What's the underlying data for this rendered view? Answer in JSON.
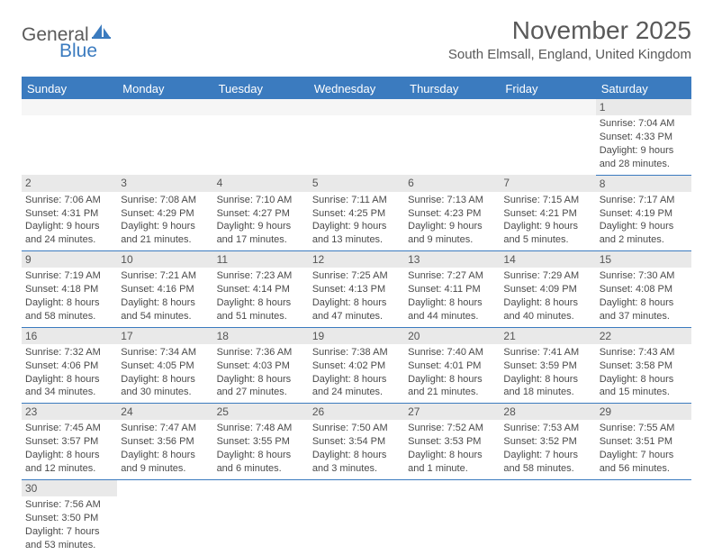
{
  "logo": {
    "text1": "General",
    "text2": "Blue",
    "icon_color": "#3b7bbf"
  },
  "title": "November 2025",
  "location": "South Elmsall, England, United Kingdom",
  "colors": {
    "accent": "#3b7bbf",
    "gray_bg": "#e9e9e9",
    "text": "#4a4a4a"
  },
  "weekdays": [
    "Sunday",
    "Monday",
    "Tuesday",
    "Wednesday",
    "Thursday",
    "Friday",
    "Saturday"
  ],
  "weeks": [
    [
      null,
      null,
      null,
      null,
      null,
      null,
      {
        "n": "1",
        "sr": "Sunrise: 7:04 AM",
        "ss": "Sunset: 4:33 PM",
        "d1": "Daylight: 9 hours",
        "d2": "and 28 minutes."
      }
    ],
    [
      {
        "n": "2",
        "sr": "Sunrise: 7:06 AM",
        "ss": "Sunset: 4:31 PM",
        "d1": "Daylight: 9 hours",
        "d2": "and 24 minutes."
      },
      {
        "n": "3",
        "sr": "Sunrise: 7:08 AM",
        "ss": "Sunset: 4:29 PM",
        "d1": "Daylight: 9 hours",
        "d2": "and 21 minutes."
      },
      {
        "n": "4",
        "sr": "Sunrise: 7:10 AM",
        "ss": "Sunset: 4:27 PM",
        "d1": "Daylight: 9 hours",
        "d2": "and 17 minutes."
      },
      {
        "n": "5",
        "sr": "Sunrise: 7:11 AM",
        "ss": "Sunset: 4:25 PM",
        "d1": "Daylight: 9 hours",
        "d2": "and 13 minutes."
      },
      {
        "n": "6",
        "sr": "Sunrise: 7:13 AM",
        "ss": "Sunset: 4:23 PM",
        "d1": "Daylight: 9 hours",
        "d2": "and 9 minutes."
      },
      {
        "n": "7",
        "sr": "Sunrise: 7:15 AM",
        "ss": "Sunset: 4:21 PM",
        "d1": "Daylight: 9 hours",
        "d2": "and 5 minutes."
      },
      {
        "n": "8",
        "sr": "Sunrise: 7:17 AM",
        "ss": "Sunset: 4:19 PM",
        "d1": "Daylight: 9 hours",
        "d2": "and 2 minutes."
      }
    ],
    [
      {
        "n": "9",
        "sr": "Sunrise: 7:19 AM",
        "ss": "Sunset: 4:18 PM",
        "d1": "Daylight: 8 hours",
        "d2": "and 58 minutes."
      },
      {
        "n": "10",
        "sr": "Sunrise: 7:21 AM",
        "ss": "Sunset: 4:16 PM",
        "d1": "Daylight: 8 hours",
        "d2": "and 54 minutes."
      },
      {
        "n": "11",
        "sr": "Sunrise: 7:23 AM",
        "ss": "Sunset: 4:14 PM",
        "d1": "Daylight: 8 hours",
        "d2": "and 51 minutes."
      },
      {
        "n": "12",
        "sr": "Sunrise: 7:25 AM",
        "ss": "Sunset: 4:13 PM",
        "d1": "Daylight: 8 hours",
        "d2": "and 47 minutes."
      },
      {
        "n": "13",
        "sr": "Sunrise: 7:27 AM",
        "ss": "Sunset: 4:11 PM",
        "d1": "Daylight: 8 hours",
        "d2": "and 44 minutes."
      },
      {
        "n": "14",
        "sr": "Sunrise: 7:29 AM",
        "ss": "Sunset: 4:09 PM",
        "d1": "Daylight: 8 hours",
        "d2": "and 40 minutes."
      },
      {
        "n": "15",
        "sr": "Sunrise: 7:30 AM",
        "ss": "Sunset: 4:08 PM",
        "d1": "Daylight: 8 hours",
        "d2": "and 37 minutes."
      }
    ],
    [
      {
        "n": "16",
        "sr": "Sunrise: 7:32 AM",
        "ss": "Sunset: 4:06 PM",
        "d1": "Daylight: 8 hours",
        "d2": "and 34 minutes."
      },
      {
        "n": "17",
        "sr": "Sunrise: 7:34 AM",
        "ss": "Sunset: 4:05 PM",
        "d1": "Daylight: 8 hours",
        "d2": "and 30 minutes."
      },
      {
        "n": "18",
        "sr": "Sunrise: 7:36 AM",
        "ss": "Sunset: 4:03 PM",
        "d1": "Daylight: 8 hours",
        "d2": "and 27 minutes."
      },
      {
        "n": "19",
        "sr": "Sunrise: 7:38 AM",
        "ss": "Sunset: 4:02 PM",
        "d1": "Daylight: 8 hours",
        "d2": "and 24 minutes."
      },
      {
        "n": "20",
        "sr": "Sunrise: 7:40 AM",
        "ss": "Sunset: 4:01 PM",
        "d1": "Daylight: 8 hours",
        "d2": "and 21 minutes."
      },
      {
        "n": "21",
        "sr": "Sunrise: 7:41 AM",
        "ss": "Sunset: 3:59 PM",
        "d1": "Daylight: 8 hours",
        "d2": "and 18 minutes."
      },
      {
        "n": "22",
        "sr": "Sunrise: 7:43 AM",
        "ss": "Sunset: 3:58 PM",
        "d1": "Daylight: 8 hours",
        "d2": "and 15 minutes."
      }
    ],
    [
      {
        "n": "23",
        "sr": "Sunrise: 7:45 AM",
        "ss": "Sunset: 3:57 PM",
        "d1": "Daylight: 8 hours",
        "d2": "and 12 minutes."
      },
      {
        "n": "24",
        "sr": "Sunrise: 7:47 AM",
        "ss": "Sunset: 3:56 PM",
        "d1": "Daylight: 8 hours",
        "d2": "and 9 minutes."
      },
      {
        "n": "25",
        "sr": "Sunrise: 7:48 AM",
        "ss": "Sunset: 3:55 PM",
        "d1": "Daylight: 8 hours",
        "d2": "and 6 minutes."
      },
      {
        "n": "26",
        "sr": "Sunrise: 7:50 AM",
        "ss": "Sunset: 3:54 PM",
        "d1": "Daylight: 8 hours",
        "d2": "and 3 minutes."
      },
      {
        "n": "27",
        "sr": "Sunrise: 7:52 AM",
        "ss": "Sunset: 3:53 PM",
        "d1": "Daylight: 8 hours",
        "d2": "and 1 minute."
      },
      {
        "n": "28",
        "sr": "Sunrise: 7:53 AM",
        "ss": "Sunset: 3:52 PM",
        "d1": "Daylight: 7 hours",
        "d2": "and 58 minutes."
      },
      {
        "n": "29",
        "sr": "Sunrise: 7:55 AM",
        "ss": "Sunset: 3:51 PM",
        "d1": "Daylight: 7 hours",
        "d2": "and 56 minutes."
      }
    ],
    [
      {
        "n": "30",
        "sr": "Sunrise: 7:56 AM",
        "ss": "Sunset: 3:50 PM",
        "d1": "Daylight: 7 hours",
        "d2": "and 53 minutes."
      },
      null,
      null,
      null,
      null,
      null,
      null
    ]
  ]
}
